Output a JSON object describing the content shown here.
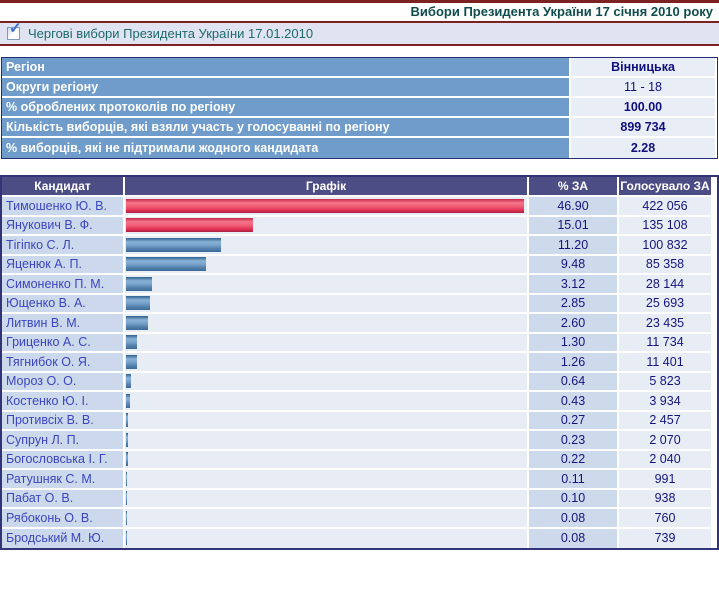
{
  "page": {
    "title": "Вибори Президента України 17 січня 2010 року",
    "accent_red_line_color": "#7d2222",
    "title_color": "#0f4d4d"
  },
  "filter": {
    "checkbox_checked": true,
    "checkmark_glyph": "✓",
    "label": "Чергові вибори Президента України 17.01.2010"
  },
  "region_table": {
    "rows": [
      {
        "label": "Регіон",
        "value": "Вінницька",
        "bold": true
      },
      {
        "label": "Округи регіону",
        "value": "11 - 18",
        "bold": false
      },
      {
        "label": "% оброблених протоколів по регіону",
        "value": "100.00",
        "bold": true
      },
      {
        "label": "Кількість виборців, які взяли участь у голосуванні по регіону",
        "value": "899 734",
        "bold": true
      },
      {
        "label": "% виборців, які не підтримали жодного кандидата",
        "value": "2.28",
        "bold": true
      }
    ]
  },
  "candidates_table": {
    "headers": [
      "Кандидат",
      "Графік",
      "% ЗА",
      "Голосувало ЗА"
    ],
    "max_percent": 46.9,
    "bar_colors": {
      "red": "#e8425f",
      "blue": "#5a87b4"
    },
    "rows": [
      {
        "name": "Тимошенко Ю. В.",
        "pct": "46.90",
        "votes": "422 056",
        "bar": "red"
      },
      {
        "name": "Янукович В. Ф.",
        "pct": "15.01",
        "votes": "135 108",
        "bar": "red"
      },
      {
        "name": "Тігіпко С. Л.",
        "pct": "11.20",
        "votes": "100 832",
        "bar": "blue"
      },
      {
        "name": "Яценюк А. П.",
        "pct": "9.48",
        "votes": "85 358",
        "bar": "blue"
      },
      {
        "name": "Симоненко П. М.",
        "pct": "3.12",
        "votes": "28 144",
        "bar": "blue"
      },
      {
        "name": "Ющенко В. А.",
        "pct": "2.85",
        "votes": "25 693",
        "bar": "blue"
      },
      {
        "name": "Литвин В. М.",
        "pct": "2.60",
        "votes": "23 435",
        "bar": "blue"
      },
      {
        "name": "Гриценко А. С.",
        "pct": "1.30",
        "votes": "11 734",
        "bar": "blue"
      },
      {
        "name": "Тягнибок О. Я.",
        "pct": "1.26",
        "votes": "11 401",
        "bar": "blue"
      },
      {
        "name": "Мороз О. О.",
        "pct": "0.64",
        "votes": "5 823",
        "bar": "blue"
      },
      {
        "name": "Костенко Ю. І.",
        "pct": "0.43",
        "votes": "3 934",
        "bar": "blue"
      },
      {
        "name": "Противсіх В. В.",
        "pct": "0.27",
        "votes": "2 457",
        "bar": "blue"
      },
      {
        "name": "Супрун Л. П.",
        "pct": "0.23",
        "votes": "2 070",
        "bar": "blue"
      },
      {
        "name": "Богословська І. Г.",
        "pct": "0.22",
        "votes": "2 040",
        "bar": "blue"
      },
      {
        "name": "Ратушняк С. М.",
        "pct": "0.11",
        "votes": "991",
        "bar": "blue"
      },
      {
        "name": "Пабат О. В.",
        "pct": "0.10",
        "votes": "938",
        "bar": "blue"
      },
      {
        "name": "Рябоконь О. В.",
        "pct": "0.08",
        "votes": "760",
        "bar": "blue"
      },
      {
        "name": "Бродський М. Ю.",
        "pct": "0.08",
        "votes": "739",
        "bar": "blue"
      }
    ]
  },
  "chart_data": {
    "type": "bar",
    "title": "Вибори Президента України 17 січня 2010 року — Вінницька",
    "categories": [
      "Тимошенко Ю. В.",
      "Янукович В. Ф.",
      "Тігіпко С. Л.",
      "Яценюк А. П.",
      "Симоненко П. М.",
      "Ющенко В. А.",
      "Литвин В. М.",
      "Гриценко А. С.",
      "Тягнибок О. Я.",
      "Мороз О. О.",
      "Костенко Ю. І.",
      "Противсіх В. В.",
      "Супрун Л. П.",
      "Богословська І. Г.",
      "Ратушняк С. М.",
      "Пабат О. В.",
      "Рябоконь О. В.",
      "Бродський М. Ю."
    ],
    "series": [
      {
        "name": "% ЗА",
        "values": [
          46.9,
          15.01,
          11.2,
          9.48,
          3.12,
          2.85,
          2.6,
          1.3,
          1.26,
          0.64,
          0.43,
          0.27,
          0.23,
          0.22,
          0.11,
          0.1,
          0.08,
          0.08
        ]
      },
      {
        "name": "Голосувало ЗА",
        "values": [
          422056,
          135108,
          100832,
          85358,
          28144,
          25693,
          23435,
          11734,
          11401,
          5823,
          3934,
          2457,
          2070,
          2040,
          991,
          938,
          760,
          739
        ]
      }
    ],
    "xlabel": "",
    "ylabel": "",
    "xlim": [
      0,
      46.9
    ],
    "orientation": "horizontal",
    "grid": false,
    "legend_position": "none"
  }
}
